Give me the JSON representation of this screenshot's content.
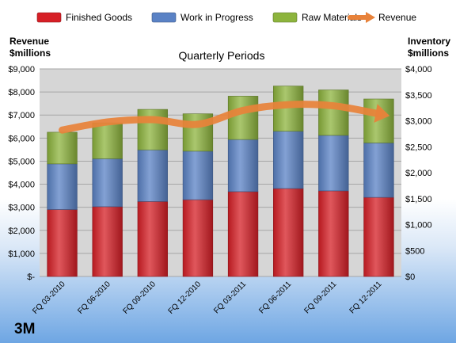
{
  "chart_data": {
    "type": "bar",
    "stacked": true,
    "title": "Quarterly Periods",
    "categories": [
      "FQ 03-2010",
      "FQ 06-2010",
      "FQ 09-2010",
      "FQ 12-2010",
      "FQ 03-2011",
      "FQ 06-2011",
      "FQ 09-2011",
      "FQ 12-2011"
    ],
    "series": [
      {
        "name": "Finished Goods",
        "color": "#d61f26",
        "axis": "right",
        "values": [
          1290,
          1345,
          1445,
          1480,
          1635,
          1695,
          1650,
          1525
        ]
      },
      {
        "name": "Work in Progress",
        "color": "#5a82c5",
        "axis": "right",
        "values": [
          880,
          925,
          995,
          935,
          1005,
          1105,
          1070,
          1050
        ]
      },
      {
        "name": "Raw Materials",
        "color": "#8db43d",
        "axis": "right",
        "values": [
          610,
          690,
          780,
          720,
          835,
          870,
          875,
          845
        ]
      }
    ],
    "line_series": {
      "name": "Revenue",
      "color": "#e8823a",
      "axis": "left",
      "values": [
        6350,
        6700,
        6800,
        6600,
        7200,
        7450,
        7400,
        7050
      ]
    },
    "left_axis": {
      "label_line1": "Revenue",
      "label_line2": "$millions",
      "ylim": [
        0,
        9000
      ],
      "ticks": [
        "$-",
        "$1,000",
        "$2,000",
        "$3,000",
        "$4,000",
        "$5,000",
        "$6,000",
        "$7,000",
        "$8,000",
        "$9,000"
      ]
    },
    "right_axis": {
      "label_line1": "Inventory",
      "label_line2": "$millions",
      "ylim": [
        0,
        4000
      ],
      "ticks": [
        "$0",
        "$500",
        "$1,000",
        "$1,500",
        "$2,000",
        "$2,500",
        "$3,000",
        "$3,500",
        "$4,000"
      ]
    },
    "legend_position": "top",
    "grid": true,
    "brand": "3M",
    "colors": {
      "plot_bg": "#d6d6d6",
      "grid": "#a6a6a6"
    }
  }
}
